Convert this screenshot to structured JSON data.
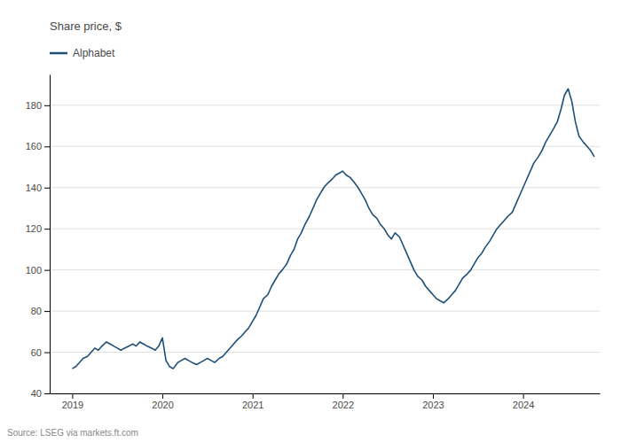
{
  "chart_data": {
    "type": "line",
    "y_label": "Share price, $",
    "annotations": [
      "Source: LSEG via markets.ft.com"
    ],
    "xlim": [
      2018.75,
      2024.85
    ],
    "xticks": [
      2019,
      2020,
      2021,
      2022,
      2023,
      2024
    ],
    "ylim": [
      40,
      195
    ],
    "yticks": [
      40,
      60,
      80,
      100,
      120,
      140,
      160,
      180
    ],
    "grid": true,
    "legend": "upper left",
    "x": [
      2019.0,
      2019.04,
      2019.08,
      2019.12,
      2019.17,
      2019.21,
      2019.25,
      2019.29,
      2019.33,
      2019.38,
      2019.42,
      2019.46,
      2019.5,
      2019.54,
      2019.58,
      2019.63,
      2019.67,
      2019.71,
      2019.75,
      2019.79,
      2019.83,
      2019.88,
      2019.92,
      2019.96,
      2020.0,
      2020.04,
      2020.08,
      2020.12,
      2020.17,
      2020.21,
      2020.25,
      2020.29,
      2020.33,
      2020.38,
      2020.42,
      2020.46,
      2020.5,
      2020.54,
      2020.58,
      2020.63,
      2020.67,
      2020.71,
      2020.75,
      2020.79,
      2020.83,
      2020.88,
      2020.92,
      2020.96,
      2021.0,
      2021.04,
      2021.08,
      2021.12,
      2021.17,
      2021.21,
      2021.25,
      2021.29,
      2021.33,
      2021.38,
      2021.42,
      2021.46,
      2021.5,
      2021.54,
      2021.58,
      2021.63,
      2021.67,
      2021.71,
      2021.75,
      2021.79,
      2021.83,
      2021.88,
      2021.92,
      2021.96,
      2022.0,
      2022.04,
      2022.08,
      2022.12,
      2022.17,
      2022.21,
      2022.25,
      2022.29,
      2022.33,
      2022.38,
      2022.42,
      2022.46,
      2022.5,
      2022.54,
      2022.58,
      2022.63,
      2022.67,
      2022.71,
      2022.75,
      2022.79,
      2022.83,
      2022.88,
      2022.92,
      2022.96,
      2023.0,
      2023.04,
      2023.08,
      2023.12,
      2023.17,
      2023.21,
      2023.25,
      2023.29,
      2023.33,
      2023.38,
      2023.42,
      2023.46,
      2023.5,
      2023.54,
      2023.58,
      2023.63,
      2023.67,
      2023.71,
      2023.75,
      2023.79,
      2023.83,
      2023.88,
      2023.92,
      2023.96,
      2024.0,
      2024.04,
      2024.08,
      2024.12,
      2024.17,
      2024.21,
      2024.25,
      2024.29,
      2024.33,
      2024.38,
      2024.42,
      2024.46,
      2024.5,
      2024.54,
      2024.58,
      2024.62,
      2024.67,
      2024.71,
      2024.75,
      2024.79
    ],
    "series": [
      {
        "name": "Alphabet",
        "color": "#1f4e79",
        "values": [
          52,
          53,
          55,
          57,
          58,
          60,
          62,
          61,
          63,
          65,
          64,
          63,
          62,
          61,
          62,
          63,
          64,
          63,
          65,
          64,
          63,
          62,
          61,
          63,
          67,
          56,
          53,
          52,
          55,
          56,
          57,
          56,
          55,
          54,
          55,
          56,
          57,
          56,
          55,
          57,
          58,
          60,
          62,
          64,
          66,
          68,
          70,
          72,
          75,
          78,
          82,
          86,
          88,
          92,
          95,
          98,
          100,
          103,
          107,
          110,
          115,
          118,
          122,
          126,
          130,
          134,
          137,
          140,
          142,
          144,
          146,
          147,
          148,
          146,
          145,
          143,
          140,
          137,
          134,
          130,
          127,
          125,
          122,
          120,
          117,
          115,
          118,
          116,
          112,
          108,
          104,
          100,
          97,
          95,
          92,
          90,
          88,
          86,
          85,
          84,
          86,
          88,
          90,
          93,
          96,
          98,
          100,
          103,
          106,
          108,
          111,
          114,
          117,
          120,
          122,
          124,
          126,
          128,
          132,
          136,
          140,
          144,
          148,
          152,
          155,
          158,
          162,
          165,
          168,
          172,
          178,
          185,
          188,
          182,
          172,
          165,
          162,
          160,
          158,
          155
        ]
      }
    ]
  }
}
